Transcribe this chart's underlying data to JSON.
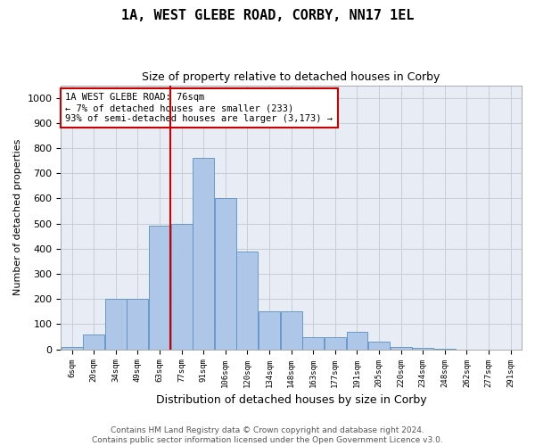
{
  "title": "1A, WEST GLEBE ROAD, CORBY, NN17 1EL",
  "subtitle": "Size of property relative to detached houses in Corby",
  "xlabel": "Distribution of detached houses by size in Corby",
  "ylabel": "Number of detached properties",
  "footer_line1": "Contains HM Land Registry data © Crown copyright and database right 2024.",
  "footer_line2": "Contains public sector information licensed under the Open Government Licence v3.0.",
  "categories": [
    "6sqm",
    "20sqm",
    "34sqm",
    "49sqm",
    "63sqm",
    "77sqm",
    "91sqm",
    "106sqm",
    "120sqm",
    "134sqm",
    "148sqm",
    "163sqm",
    "177sqm",
    "191sqm",
    "205sqm",
    "220sqm",
    "234sqm",
    "248sqm",
    "262sqm",
    "277sqm",
    "291sqm"
  ],
  "bar_values": [
    10,
    60,
    200,
    200,
    490,
    500,
    760,
    600,
    390,
    150,
    150,
    50,
    50,
    70,
    30,
    10,
    5,
    2,
    0,
    0,
    0
  ],
  "bar_color": "#aec6e8",
  "bar_edge_color": "#5a8fc2",
  "grid_color": "#c8cdd6",
  "bg_color": "#e8ecf5",
  "vline_x_index": 4,
  "vline_color": "#cc0000",
  "annotation_text": "1A WEST GLEBE ROAD: 76sqm\n← 7% of detached houses are smaller (233)\n93% of semi-detached houses are larger (3,173) →",
  "annotation_box_color": "#ffffff",
  "annotation_box_edge": "#cc0000",
  "ylim": [
    0,
    1050
  ],
  "yticks": [
    0,
    100,
    200,
    300,
    400,
    500,
    600,
    700,
    800,
    900,
    1000
  ]
}
